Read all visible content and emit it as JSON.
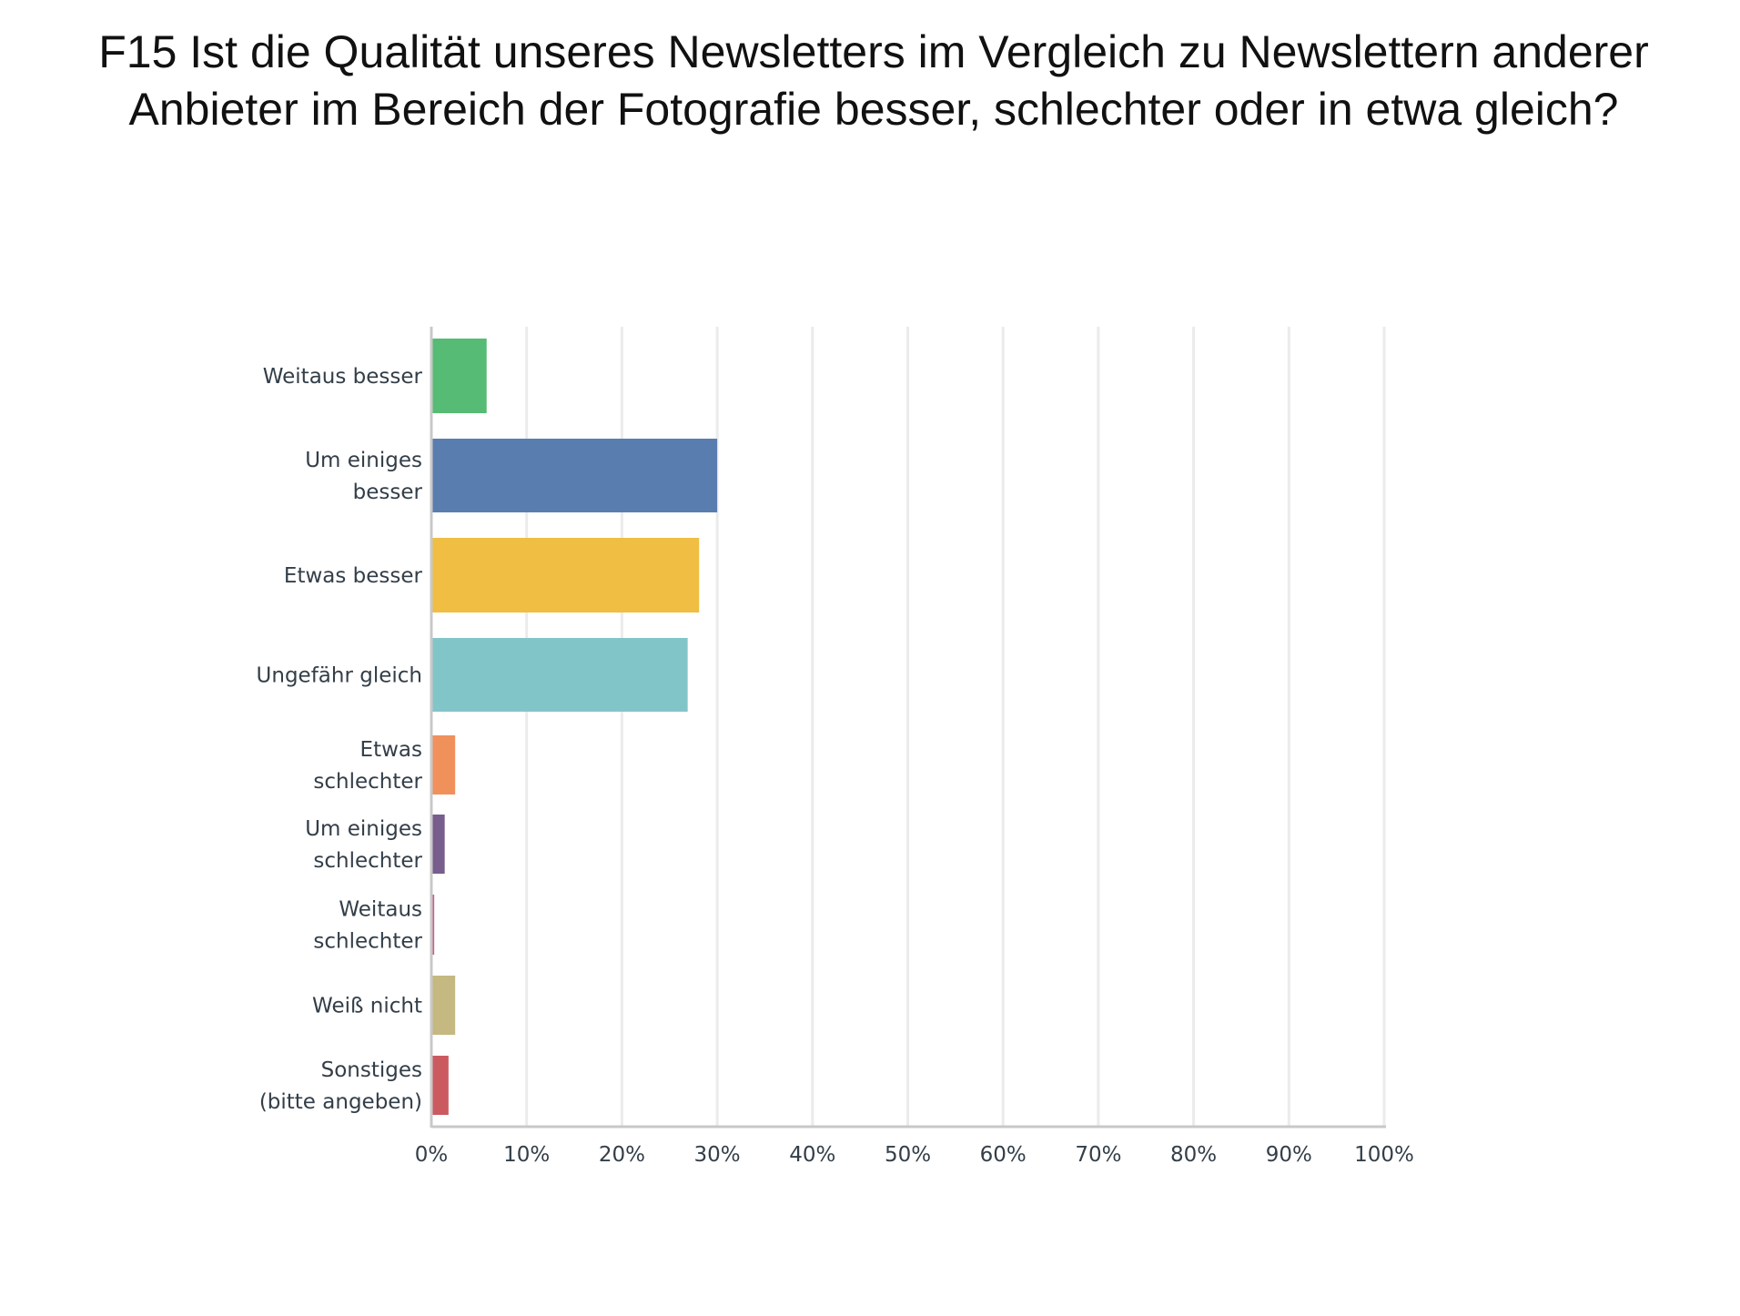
{
  "chart_data": {
    "type": "bar",
    "orientation": "horizontal",
    "title": "F15 Ist die Qualität unseres Newsletters im Vergleich zu Newslettern anderer Anbieter im Bereich der Fotografie besser, schlechter oder in etwa gleich?",
    "categories": [
      [
        "Weitaus besser"
      ],
      [
        "Um einiges",
        "besser"
      ],
      [
        "Etwas besser"
      ],
      [
        "Ungefähr gleich"
      ],
      [
        "Etwas",
        "schlechter"
      ],
      [
        "Um einiges",
        "schlechter"
      ],
      [
        "Weitaus",
        "schlechter"
      ],
      [
        "Weiß nicht"
      ],
      [
        "Sonstiges",
        "(bitte angeben)"
      ]
    ],
    "values": [
      5.8,
      30.0,
      28.1,
      26.9,
      2.5,
      1.4,
      0.3,
      2.5,
      1.8
    ],
    "colors": [
      "#56bb74",
      "#5a7db0",
      "#efbe42",
      "#82c5c9",
      "#f0915c",
      "#775e8c",
      "#c9608c",
      "#c5b880",
      "#cb5a60"
    ],
    "xlim": [
      0,
      100
    ],
    "xticks": [
      "0%",
      "10%",
      "20%",
      "30%",
      "40%",
      "50%",
      "60%",
      "70%",
      "80%",
      "90%",
      "100%"
    ],
    "xlabel": "",
    "ylabel": "",
    "grid": true
  }
}
